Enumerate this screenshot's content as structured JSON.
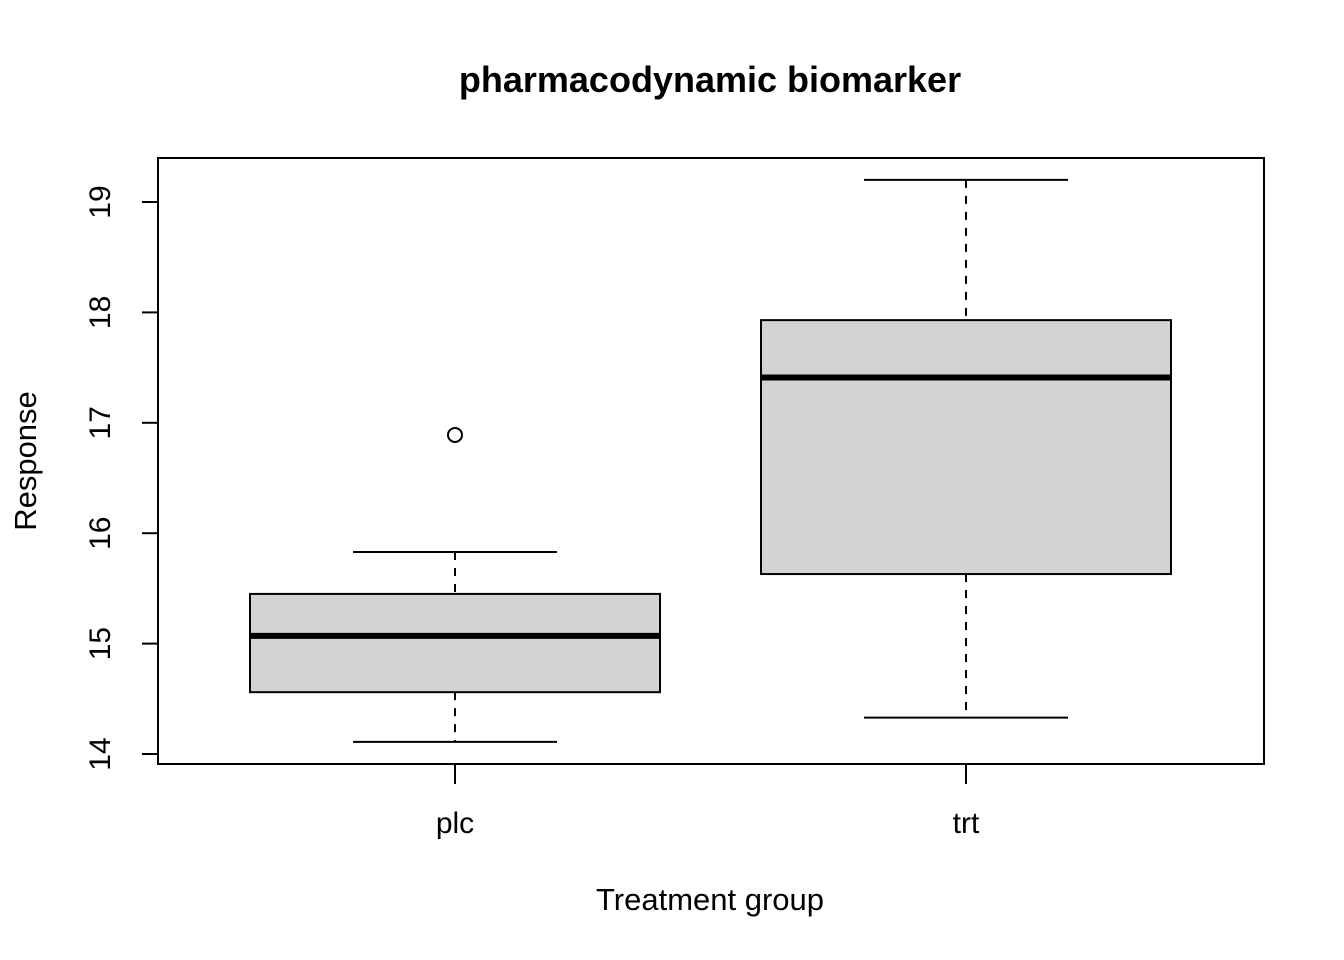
{
  "chart_data": {
    "type": "boxplot",
    "title": "pharmacodynamic biomarker",
    "xlabel": "Treatment group",
    "ylabel": "Response",
    "ylim": [
      13.9,
      19.4
    ],
    "yticks": [
      14,
      15,
      16,
      17,
      18,
      19
    ],
    "categories": [
      "plc",
      "trt"
    ],
    "boxes": [
      {
        "name": "plc",
        "whisker_low": 14.11,
        "q1": 14.56,
        "median": 15.07,
        "q3": 15.45,
        "whisker_high": 15.83,
        "outliers": [
          16.89
        ]
      },
      {
        "name": "trt",
        "whisker_low": 14.33,
        "q1": 15.63,
        "median": 17.41,
        "q3": 17.93,
        "whisker_high": 19.2,
        "outliers": []
      }
    ],
    "colors": {
      "box_fill": "#d3d3d3",
      "line": "#000000",
      "background": "#ffffff"
    },
    "grid": false,
    "legend": "none"
  }
}
